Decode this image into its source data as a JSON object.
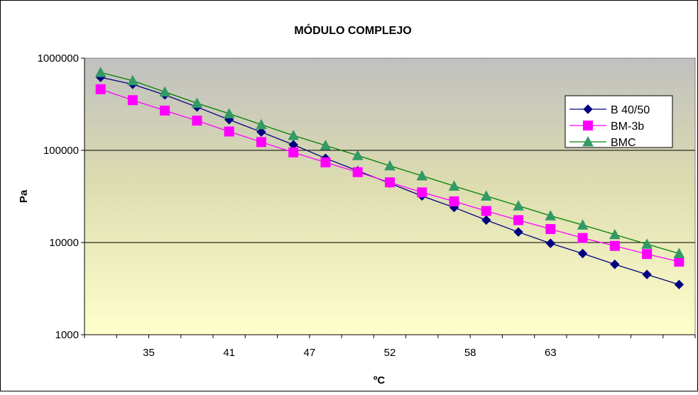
{
  "chart_data": {
    "type": "line",
    "title": "MÓDULO COMPLEJO",
    "xlabel": "ºC",
    "ylabel": "Pa",
    "yscale": "log",
    "ylim": [
      1000,
      1000000
    ],
    "y_ticks": [
      "1000",
      "10000",
      "100000",
      "1000000"
    ],
    "x_tick_labels": [
      "35",
      "41",
      "47",
      "52",
      "58",
      "63"
    ],
    "grid": "horizontal major lines",
    "legend_position": "top-right",
    "plot_background": "gradient gray (top) to pale yellow (bottom)",
    "x": [
      31.4,
      33.2,
      35,
      36.8,
      38.6,
      40.4,
      42.2,
      44.0,
      45.8,
      47.6,
      49.4,
      51.2,
      53.0,
      54.8,
      56.6,
      58.4,
      60.2,
      62.0,
      63.8
    ],
    "series": [
      {
        "name": "B 40/50",
        "color": "#000080",
        "marker": "diamond",
        "values": [
          620000,
          520000,
          400000,
          295000,
          215000,
          158000,
          115000,
          82000,
          60000,
          44000,
          32000,
          24000,
          17500,
          13000,
          9800,
          7600,
          5800,
          4500,
          3500
        ]
      },
      {
        "name": "BM-3b",
        "color": "#ff00ff",
        "marker": "square",
        "values": [
          460000,
          350000,
          270000,
          210000,
          160000,
          123000,
          95000,
          74000,
          58000,
          45000,
          35000,
          28000,
          22000,
          17500,
          14000,
          11200,
          9200,
          7500,
          6200
        ]
      },
      {
        "name": "BMC",
        "color": "#008000",
        "marker": "triangle",
        "values": [
          700000,
          570000,
          430000,
          325000,
          250000,
          190000,
          145000,
          113000,
          88000,
          68000,
          53000,
          41000,
          32000,
          25000,
          19500,
          15500,
          12200,
          9600,
          7600
        ]
      }
    ]
  }
}
